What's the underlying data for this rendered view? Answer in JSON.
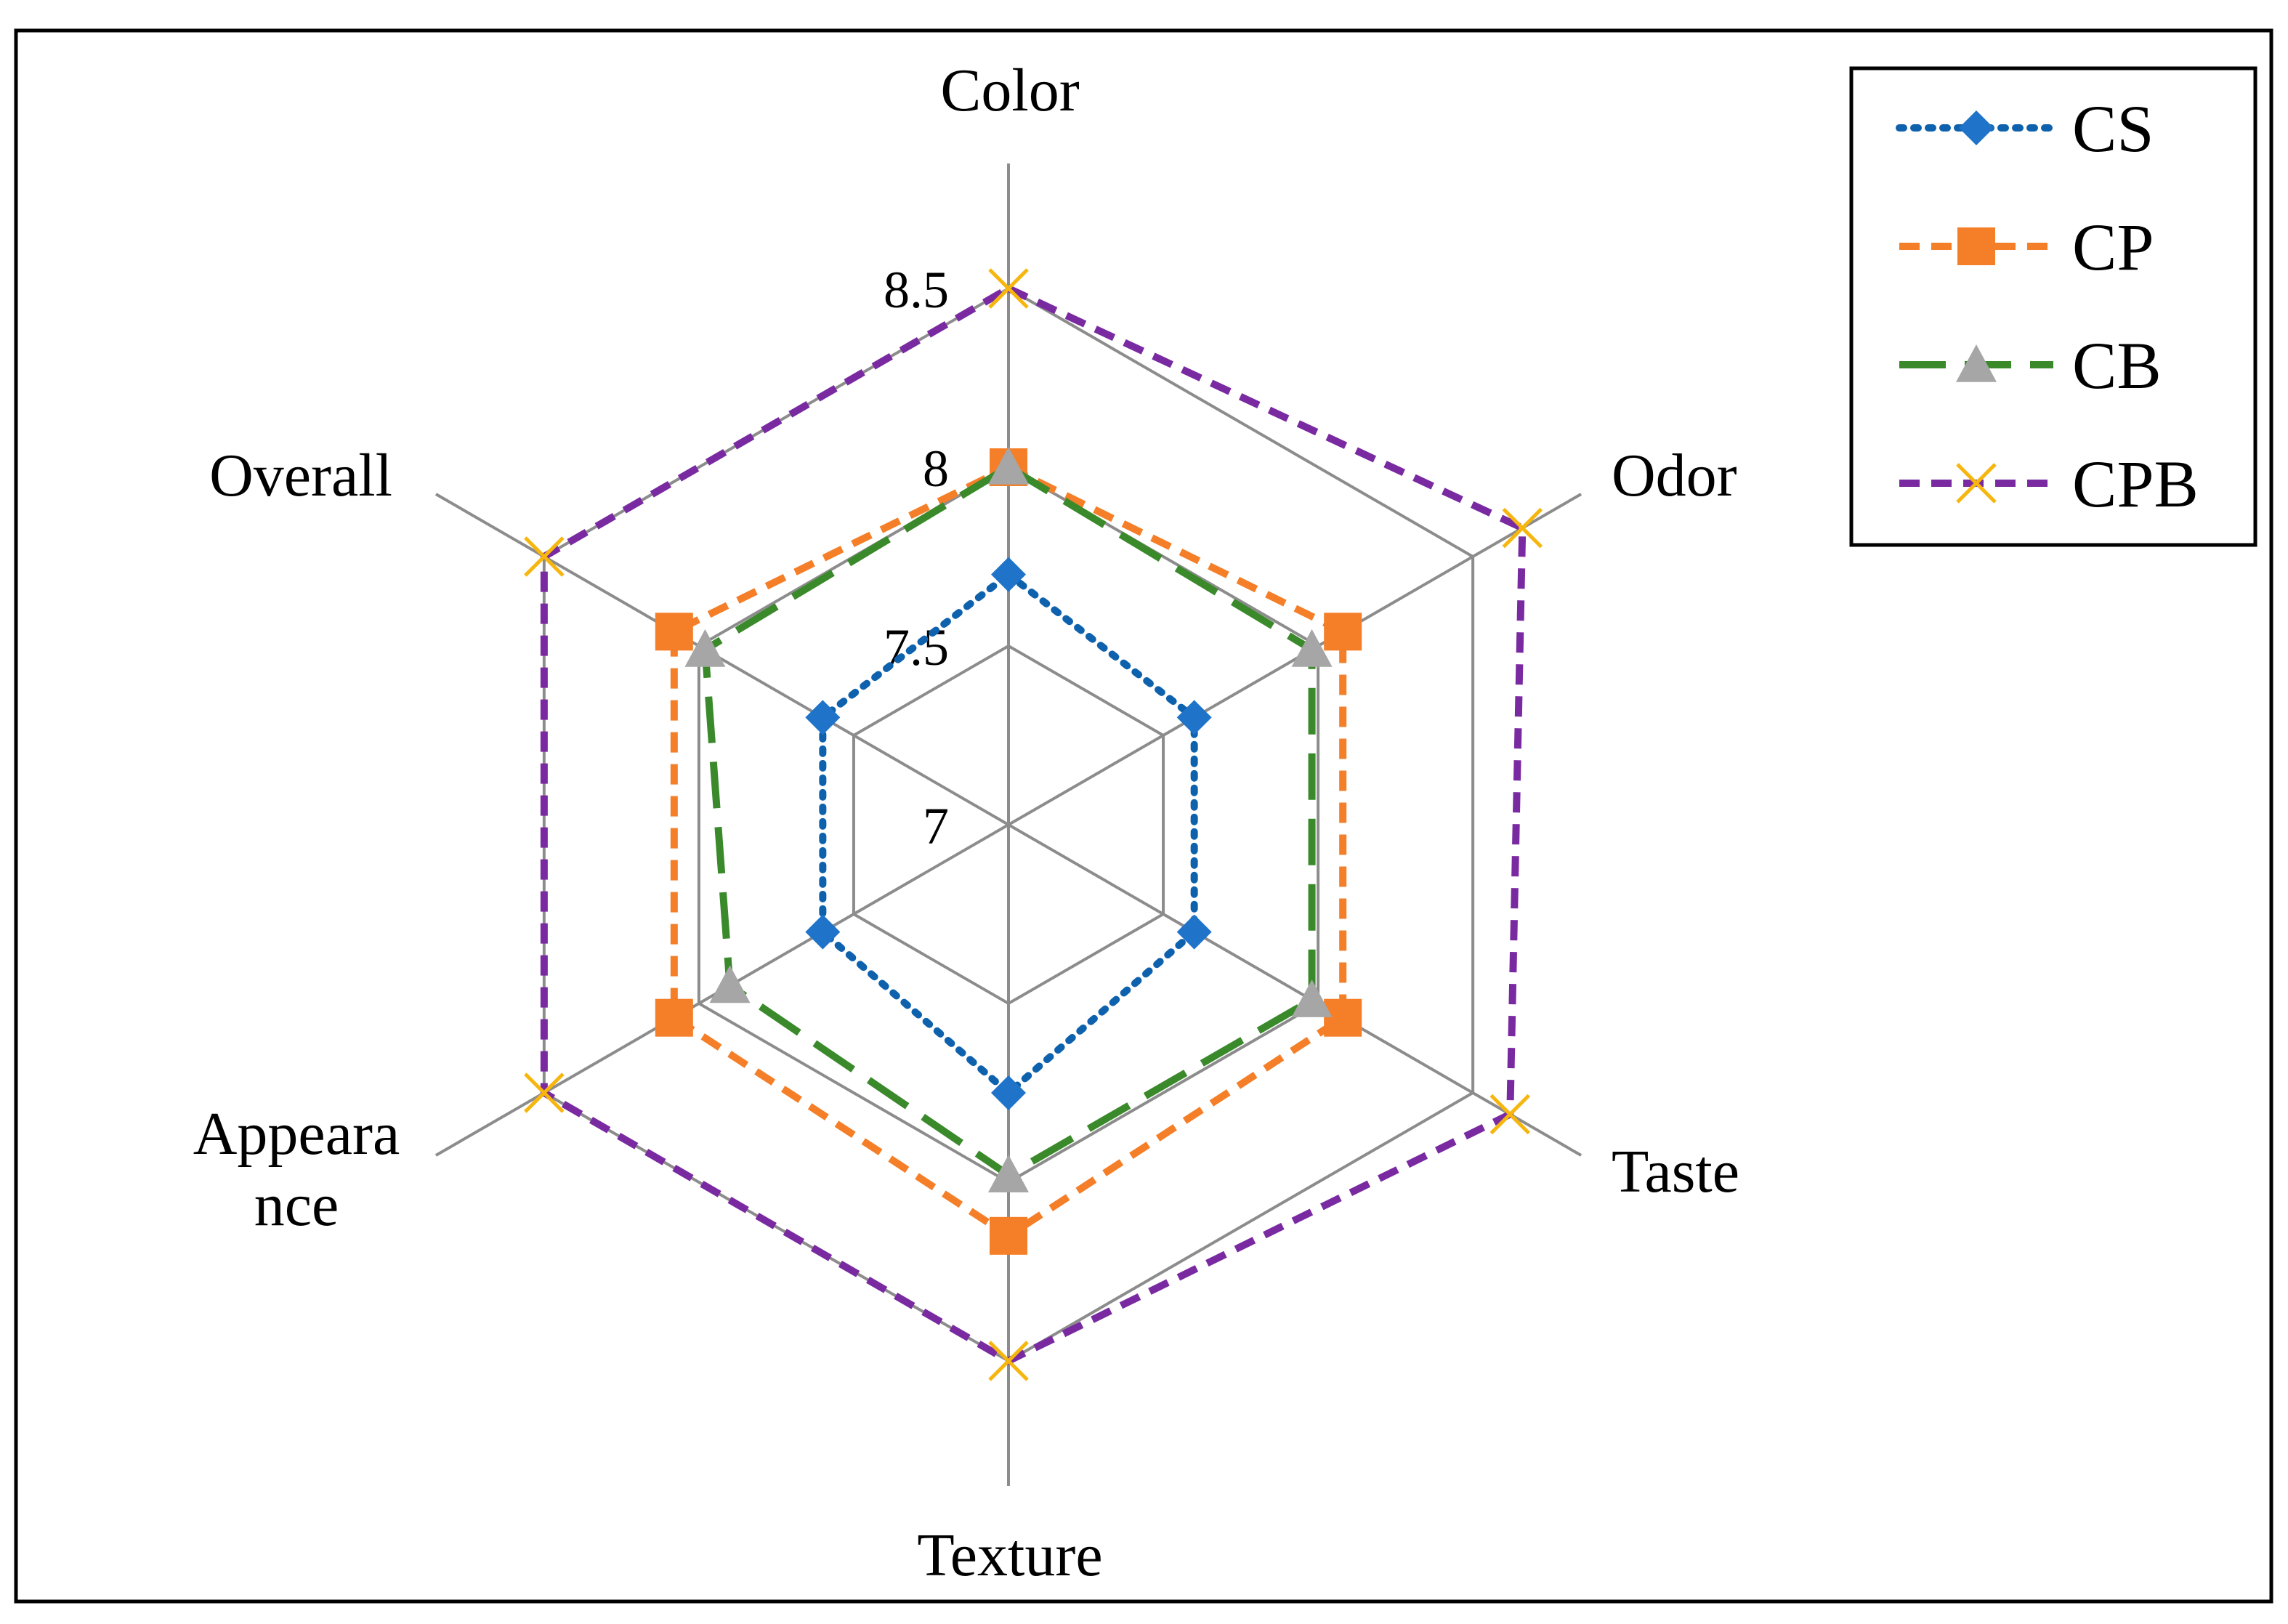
{
  "chart_data": {
    "type": "radar",
    "categories": [
      "Color",
      "Odor",
      "Taste",
      "Texture",
      "Appeara\nnce",
      "Overall"
    ],
    "rmin": 7,
    "rmax": 8.5,
    "ticks": [
      {
        "value": 7,
        "label": "7"
      },
      {
        "value": 7.5,
        "label": "7.5"
      },
      {
        "value": 8,
        "label": "8"
      },
      {
        "value": 8.5,
        "label": "8.5"
      }
    ],
    "grid": true,
    "legend_position": "top-right",
    "series": [
      {
        "name": "CS",
        "values": [
          7.7,
          7.6,
          7.6,
          7.75,
          7.6,
          7.6
        ],
        "color": "#0e62ad",
        "marker_color": "#1f74c9",
        "marker": "diamond",
        "dash": "dotted"
      },
      {
        "name": "CP",
        "values": [
          8.0,
          8.08,
          8.08,
          8.15,
          8.08,
          8.08
        ],
        "color": "#f47f28",
        "marker_color": "#f47f28",
        "marker": "square",
        "dash": "dashed"
      },
      {
        "name": "CB",
        "values": [
          8.0,
          7.98,
          7.98,
          7.98,
          7.9,
          7.98
        ],
        "color": "#3a8a2b",
        "marker_color": "#a6a6a6",
        "marker": "triangle",
        "dash": "longdash"
      },
      {
        "name": "CPB",
        "values": [
          8.5,
          8.66,
          8.62,
          8.5,
          8.5,
          8.5
        ],
        "color": "#7a2aa1",
        "marker_color": "#f6b60e",
        "marker": "x",
        "dash": "dashed"
      }
    ]
  }
}
